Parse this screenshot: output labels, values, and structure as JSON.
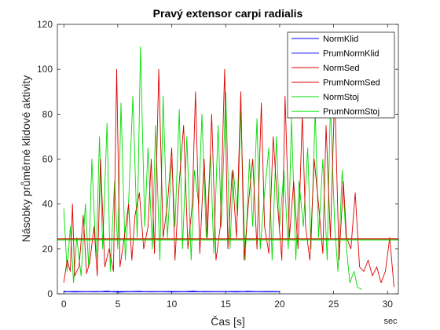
{
  "chart_data": {
    "type": "line",
    "title": "Pravý extensor carpi radialis",
    "xlabel": "Čas [s]",
    "ylabel": "Násobky průměrné klidové aktivity",
    "x_unit": "sec",
    "xlim": [
      -0.6,
      31
    ],
    "ylim": [
      0,
      120
    ],
    "xticks": [
      0,
      5,
      10,
      15,
      20,
      25,
      30
    ],
    "yticks": [
      0,
      20,
      40,
      60,
      80,
      100,
      120
    ],
    "grid": false,
    "legend_position": "top-right",
    "series": [
      {
        "name": "NormKlid",
        "color": "#0000ff",
        "x": [
          0,
          1,
          2,
          3,
          4,
          5,
          6,
          7,
          8,
          9,
          10,
          11,
          12,
          13,
          14,
          15,
          16,
          17,
          18,
          19,
          20
        ],
        "values": [
          1.2,
          0.8,
          1.1,
          0.9,
          1.3,
          0.7,
          1.0,
          1.2,
          0.9,
          1.1,
          0.8,
          1.0,
          1.3,
          0.9,
          1.0,
          1.1,
          0.8,
          1.2,
          1.0,
          0.9,
          1.0
        ]
      },
      {
        "name": "PrumNormKlid",
        "color": "#0000ff",
        "x": [
          0,
          20
        ],
        "values": [
          1,
          1
        ]
      },
      {
        "name": "NormSed",
        "color": "#dd0000",
        "x": [
          0,
          0.3,
          0.6,
          0.8,
          1.0,
          1.4,
          1.8,
          2.1,
          2.4,
          2.8,
          3.1,
          3.4,
          3.8,
          4.2,
          4.6,
          4.9,
          5.2,
          5.6,
          6.0,
          6.3,
          6.6,
          7.0,
          7.4,
          7.8,
          8.1,
          8.4,
          8.8,
          9.2,
          9.6,
          10.0,
          10.3,
          10.7,
          11.1,
          11.5,
          11.9,
          12.2,
          12.6,
          13.0,
          13.3,
          13.7,
          14.1,
          14.5,
          14.9,
          15.2,
          15.6,
          16.0,
          16.4,
          16.7,
          17.1,
          17.5,
          17.9,
          18.3,
          18.6,
          19.0,
          19.4,
          19.8,
          20.2,
          20.5,
          20.9,
          21.3,
          21.7,
          22.1,
          22.4,
          22.8,
          23.2,
          23.6,
          24.0,
          24.3,
          24.7,
          25.1,
          25.5,
          25.9,
          26.2,
          26.6,
          27.0,
          27.4,
          27.8,
          28.2,
          28.6,
          29.0,
          29.4,
          29.8,
          30.2,
          30.6
        ],
        "values": [
          5,
          15,
          10,
          40,
          8,
          12,
          35,
          9,
          14,
          30,
          8,
          60,
          12,
          20,
          10,
          100,
          12,
          25,
          40,
          15,
          35,
          45,
          20,
          30,
          60,
          18,
          100,
          25,
          40,
          65,
          15,
          50,
          75,
          20,
          40,
          90,
          18,
          60,
          25,
          80,
          15,
          30,
          100,
          20,
          55,
          25,
          90,
          15,
          40,
          60,
          20,
          85,
          30,
          18,
          70,
          40,
          15,
          88,
          25,
          50,
          20,
          80,
          30,
          15,
          60,
          40,
          18,
          75,
          25,
          90,
          15,
          50,
          25,
          20,
          45,
          12,
          10,
          15,
          8,
          12,
          5,
          10,
          25,
          3
        ]
      },
      {
        "name": "PrumNormSed",
        "color": "#dd0000",
        "x": [
          -0.6,
          31
        ],
        "values": [
          24.5,
          24.5
        ]
      },
      {
        "name": "NormStoj",
        "color": "#00dd00",
        "x": [
          0,
          0.3,
          0.6,
          0.9,
          1.2,
          1.6,
          2.0,
          2.3,
          2.6,
          3.0,
          3.3,
          3.6,
          4.0,
          4.3,
          4.7,
          5.0,
          5.3,
          5.7,
          6.0,
          6.4,
          6.8,
          7.1,
          7.5,
          7.8,
          8.2,
          8.5,
          8.9,
          9.2,
          9.6,
          10.0,
          10.3,
          10.7,
          11.0,
          11.4,
          11.8,
          12.1,
          12.5,
          12.8,
          13.2,
          13.6,
          13.9,
          14.3,
          14.6,
          15.0,
          15.4,
          15.7,
          16.1,
          16.4,
          16.8,
          17.2,
          17.5,
          17.9,
          18.2,
          18.6,
          19.0,
          19.3,
          19.7,
          20.0,
          20.4,
          20.8,
          21.1,
          21.5,
          21.8,
          22.2,
          22.6,
          22.9,
          23.3,
          23.6,
          24.0,
          24.4,
          24.7,
          25.1,
          25.4,
          25.8,
          26.2,
          26.5,
          26.9,
          27.2,
          27.6
        ],
        "values": [
          38,
          10,
          30,
          5,
          25,
          8,
          40,
          12,
          60,
          15,
          70,
          20,
          76,
          10,
          50,
          20,
          85,
          15,
          40,
          88,
          25,
          110,
          30,
          65,
          20,
          75,
          15,
          88,
          25,
          60,
          30,
          82,
          20,
          70,
          15,
          55,
          40,
          80,
          25,
          62,
          18,
          75,
          30,
          90,
          20,
          55,
          35,
          82,
          15,
          60,
          30,
          78,
          20,
          45,
          65,
          15,
          70,
          30,
          55,
          20,
          78,
          15,
          50,
          30,
          65,
          20,
          82,
          25,
          60,
          15,
          85,
          30,
          10,
          55,
          20,
          5,
          10,
          3,
          2
        ]
      },
      {
        "name": "PrumNormStoj",
        "color": "#00ee00",
        "x": [
          -0.6,
          31
        ],
        "values": [
          24,
          24
        ]
      }
    ]
  },
  "legend": {
    "items": [
      {
        "label": "NormKlid",
        "color": "#0000ff"
      },
      {
        "label": "PrumNormKlid",
        "color": "#0000ff"
      },
      {
        "label": "NormSed",
        "color": "#dd0000"
      },
      {
        "label": "PrumNormSed",
        "color": "#dd0000"
      },
      {
        "label": "NormStoj",
        "color": "#00dd00"
      },
      {
        "label": "PrumNormStoj",
        "color": "#00ee00"
      }
    ]
  }
}
